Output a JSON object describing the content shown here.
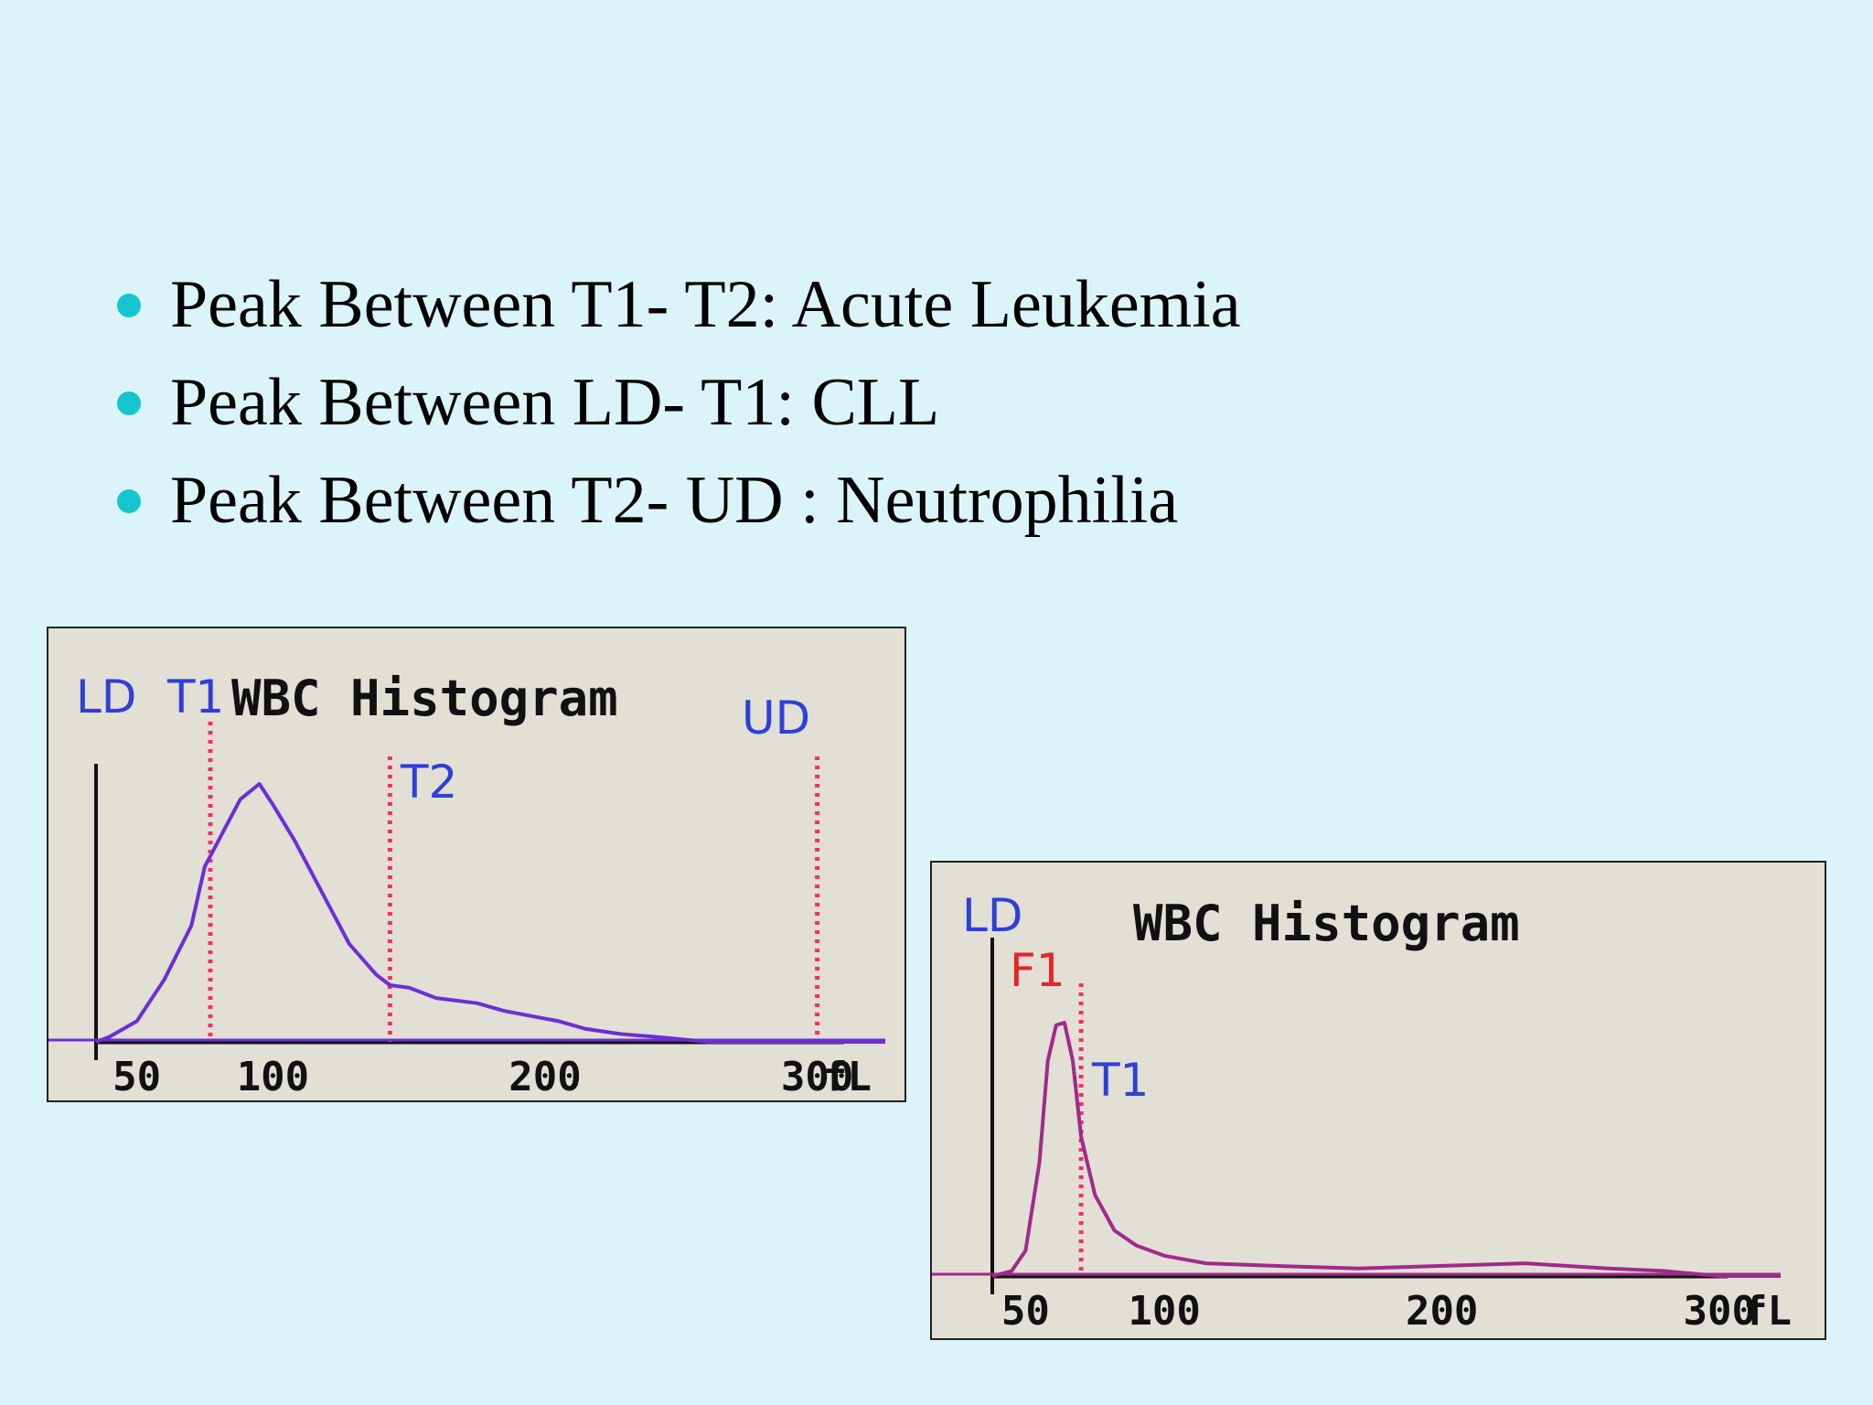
{
  "bullets": [
    "Peak Between T1- T2: Acute Leukemia",
    "Peak Between LD- T1: CLL",
    "Peak Between T2- UD : Neutrophilia"
  ],
  "colors": {
    "background": "#dbf4fa",
    "bullet_dot": "#16c6cf",
    "panel_bg": "#e2dfd4",
    "curve_1": "#6a2fd8",
    "curve_2": "#a02a8c",
    "threshold_line": "#ff2a6d",
    "blue_label": "#2f3fd8",
    "red_label": "#e8232a"
  },
  "chart_data": [
    {
      "type": "line",
      "title": "WBC Histogram",
      "xlabel": "fL",
      "xlim": [
        35,
        325
      ],
      "ylim": [
        0,
        100
      ],
      "x_ticks": [
        50,
        100,
        200,
        300
      ],
      "markers": [
        {
          "label": "LD",
          "x": 35,
          "style": "solid",
          "label_color": "blue"
        },
        {
          "label": "T1",
          "x": 77,
          "style": "dotted",
          "label_color": "blue"
        },
        {
          "label": "T2",
          "x": 143,
          "style": "dotted",
          "label_color": "blue"
        },
        {
          "label": "UD",
          "x": 300,
          "style": "dotted",
          "label_color": "blue"
        }
      ],
      "series": [
        {
          "values": [
            [
              35,
              0
            ],
            [
              40,
              2
            ],
            [
              50,
              8
            ],
            [
              60,
              24
            ],
            [
              70,
              45
            ],
            [
              75,
              68
            ],
            [
              80,
              78
            ],
            [
              88,
              94
            ],
            [
              95,
              100
            ],
            [
              100,
              92
            ],
            [
              108,
              78
            ],
            [
              118,
              58
            ],
            [
              128,
              38
            ],
            [
              138,
              26
            ],
            [
              143,
              22
            ],
            [
              150,
              21
            ],
            [
              160,
              17
            ],
            [
              175,
              15
            ],
            [
              185,
              12
            ],
            [
              195,
              10
            ],
            [
              205,
              8
            ],
            [
              215,
              5
            ],
            [
              228,
              3
            ],
            [
              240,
              2
            ],
            [
              260,
              0
            ],
            [
              325,
              0
            ]
          ]
        }
      ]
    },
    {
      "type": "line",
      "title": "WBC Histogram",
      "xlabel": "fL",
      "xlim": [
        38,
        322
      ],
      "ylim": [
        0,
        100
      ],
      "x_ticks": [
        50,
        100,
        200,
        300
      ],
      "markers": [
        {
          "label": "LD",
          "x": 38,
          "style": "solid",
          "label_color": "blue"
        },
        {
          "label": "F1",
          "x": 56,
          "style": "none",
          "label_color": "red"
        },
        {
          "label": "T1",
          "x": 70,
          "style": "dotted",
          "label_color": "blue"
        }
      ],
      "series": [
        {
          "values": [
            [
              38,
              0
            ],
            [
              45,
              2
            ],
            [
              50,
              10
            ],
            [
              55,
              45
            ],
            [
              58,
              85
            ],
            [
              61,
              99
            ],
            [
              64,
              100
            ],
            [
              67,
              85
            ],
            [
              70,
              55
            ],
            [
              75,
              32
            ],
            [
              82,
              18
            ],
            [
              90,
              12
            ],
            [
              100,
              8
            ],
            [
              115,
              5
            ],
            [
              140,
              4
            ],
            [
              170,
              3
            ],
            [
              200,
              4
            ],
            [
              230,
              5
            ],
            [
              260,
              3
            ],
            [
              280,
              2
            ],
            [
              300,
              0
            ],
            [
              322,
              0
            ]
          ]
        }
      ]
    }
  ]
}
